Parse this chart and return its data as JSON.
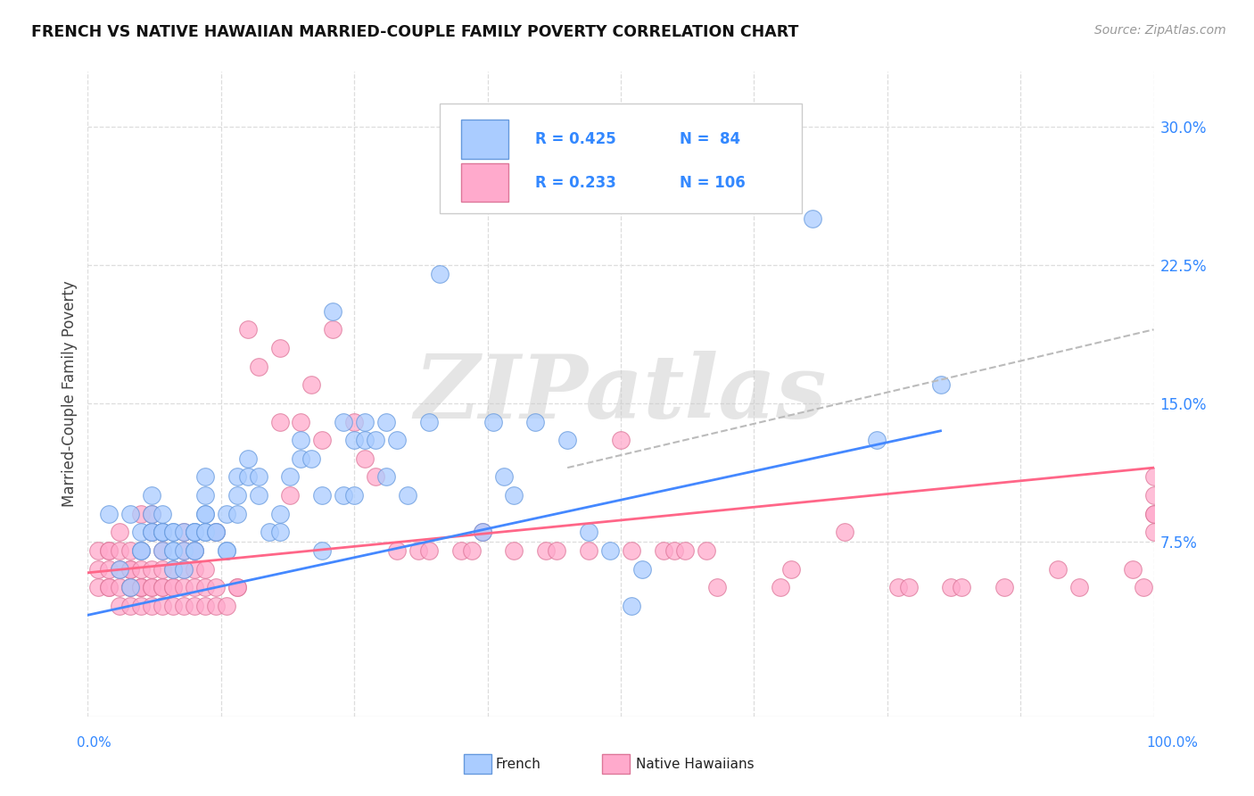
{
  "title": "FRENCH VS NATIVE HAWAIIAN MARRIED-COUPLE FAMILY POVERTY CORRELATION CHART",
  "source": "Source: ZipAtlas.com",
  "ylabel": "Married-Couple Family Poverty",
  "xlim": [
    0,
    100
  ],
  "ylim": [
    -2,
    33
  ],
  "xticks": [
    0,
    12.5,
    25,
    37.5,
    50,
    62.5,
    75,
    87.5,
    100
  ],
  "yticks_right": [
    7.5,
    15.0,
    22.5,
    30.0
  ],
  "ytick_labels_right": [
    "7.5%",
    "15.0%",
    "22.5%",
    "30.0%"
  ],
  "grid_color": "#dddddd",
  "background_color": "#ffffff",
  "watermark": "ZIPatlas",
  "legend_r1": "R = 0.425",
  "legend_n1": "N =  84",
  "legend_r2": "R = 0.233",
  "legend_n2": "N = 106",
  "color_french": "#aaccff",
  "color_french_edge": "#6699dd",
  "color_native": "#ffaacc",
  "color_native_edge": "#dd7799",
  "color_french_line": "#4488ff",
  "color_native_line": "#ff6688",
  "color_legend_text": "#3388ff",
  "color_legend_label": "#222222",
  "french_x": [
    2,
    3,
    4,
    4,
    5,
    5,
    5,
    6,
    6,
    6,
    6,
    7,
    7,
    7,
    7,
    7,
    8,
    8,
    8,
    8,
    8,
    9,
    9,
    9,
    10,
    10,
    10,
    10,
    10,
    11,
    11,
    11,
    11,
    11,
    11,
    12,
    12,
    13,
    13,
    13,
    14,
    14,
    14,
    15,
    15,
    16,
    16,
    17,
    18,
    18,
    19,
    20,
    20,
    21,
    22,
    22,
    23,
    24,
    24,
    25,
    25,
    26,
    26,
    27,
    28,
    28,
    29,
    30,
    32,
    33,
    37,
    38,
    39,
    40,
    42,
    45,
    47,
    49,
    51,
    52,
    58,
    68,
    74,
    80
  ],
  "french_y": [
    9.0,
    6.0,
    9.0,
    5.0,
    8.0,
    7.0,
    7.0,
    8.0,
    8.0,
    9.0,
    10.0,
    7.0,
    8.0,
    8.0,
    8.0,
    9.0,
    6.0,
    7.0,
    7.0,
    8.0,
    8.0,
    6.0,
    7.0,
    8.0,
    7.0,
    7.0,
    8.0,
    8.0,
    8.0,
    8.0,
    8.0,
    9.0,
    9.0,
    10.0,
    11.0,
    8.0,
    8.0,
    7.0,
    7.0,
    9.0,
    9.0,
    10.0,
    11.0,
    11.0,
    12.0,
    10.0,
    11.0,
    8.0,
    8.0,
    9.0,
    11.0,
    12.0,
    13.0,
    12.0,
    7.0,
    10.0,
    20.0,
    14.0,
    10.0,
    10.0,
    13.0,
    13.0,
    14.0,
    13.0,
    11.0,
    14.0,
    13.0,
    10.0,
    14.0,
    22.0,
    8.0,
    14.0,
    11.0,
    10.0,
    14.0,
    13.0,
    8.0,
    7.0,
    4.0,
    6.0,
    26.0,
    25.0,
    13.0,
    16.0
  ],
  "native_x": [
    1,
    1,
    1,
    2,
    2,
    2,
    2,
    2,
    3,
    3,
    3,
    3,
    3,
    4,
    4,
    4,
    4,
    4,
    4,
    5,
    5,
    5,
    5,
    5,
    5,
    5,
    6,
    6,
    6,
    6,
    6,
    6,
    7,
    7,
    7,
    7,
    7,
    7,
    8,
    8,
    8,
    8,
    9,
    9,
    9,
    9,
    9,
    10,
    10,
    10,
    10,
    11,
    11,
    11,
    12,
    12,
    12,
    13,
    14,
    14,
    15,
    16,
    18,
    18,
    19,
    20,
    21,
    22,
    23,
    25,
    26,
    27,
    29,
    31,
    32,
    35,
    36,
    37,
    40,
    43,
    44,
    47,
    50,
    51,
    54,
    55,
    56,
    58,
    59,
    65,
    66,
    71,
    76,
    77,
    81,
    82,
    86,
    91,
    93,
    98,
    99,
    100,
    100,
    100,
    100,
    100
  ],
  "native_y": [
    5.0,
    6.0,
    7.0,
    5.0,
    5.0,
    6.0,
    7.0,
    7.0,
    4.0,
    5.0,
    6.0,
    7.0,
    8.0,
    4.0,
    5.0,
    5.0,
    6.0,
    6.0,
    7.0,
    4.0,
    5.0,
    5.0,
    5.0,
    6.0,
    7.0,
    9.0,
    4.0,
    5.0,
    5.0,
    6.0,
    8.0,
    9.0,
    4.0,
    5.0,
    5.0,
    6.0,
    7.0,
    8.0,
    4.0,
    5.0,
    5.0,
    6.0,
    4.0,
    5.0,
    6.0,
    7.0,
    8.0,
    4.0,
    5.0,
    6.0,
    7.0,
    4.0,
    5.0,
    6.0,
    4.0,
    5.0,
    8.0,
    4.0,
    5.0,
    5.0,
    19.0,
    17.0,
    18.0,
    14.0,
    10.0,
    14.0,
    16.0,
    13.0,
    19.0,
    14.0,
    12.0,
    11.0,
    7.0,
    7.0,
    7.0,
    7.0,
    7.0,
    8.0,
    7.0,
    7.0,
    7.0,
    7.0,
    13.0,
    7.0,
    7.0,
    7.0,
    7.0,
    7.0,
    5.0,
    5.0,
    6.0,
    8.0,
    5.0,
    5.0,
    5.0,
    5.0,
    5.0,
    6.0,
    5.0,
    6.0,
    5.0,
    8.0,
    9.0,
    9.0,
    10.0,
    11.0
  ],
  "french_trend": [
    0,
    80,
    3.5,
    13.5
  ],
  "native_trend": [
    0,
    100,
    5.8,
    11.5
  ],
  "dashed_x1": 45,
  "dashed_x2": 100,
  "dashed_y1": 11.5,
  "dashed_y2": 19.0
}
